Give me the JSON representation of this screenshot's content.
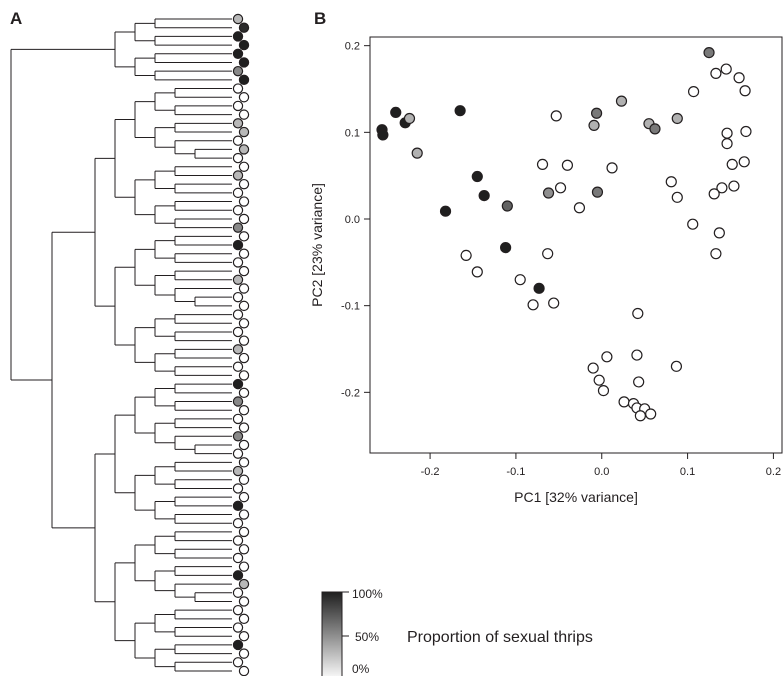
{
  "panel_a": {
    "label": "A",
    "leaf_colors": [
      "#b8b8b8",
      "#2b2b2b",
      "#1f1f1f",
      "#1f1f1f",
      "#1f1f1f",
      "#1f1f1f",
      "#888888",
      "#1f1f1f",
      "#ffffff",
      "#ffffff",
      "#ffffff",
      "#ffffff",
      "#b8b8b8",
      "#b8b8b8",
      "#ffffff",
      "#b8b8b8",
      "#ffffff",
      "#ffffff",
      "#b8b8b8",
      "#ffffff",
      "#ffffff",
      "#ffffff",
      "#ffffff",
      "#ffffff",
      "#888888",
      "#ffffff",
      "#1f1f1f",
      "#ffffff",
      "#ffffff",
      "#ffffff",
      "#b8b8b8",
      "#ffffff",
      "#ffffff",
      "#ffffff",
      "#ffffff",
      "#ffffff",
      "#ffffff",
      "#ffffff",
      "#b8b8b8",
      "#ffffff",
      "#ffffff",
      "#ffffff",
      "#1f1f1f",
      "#ffffff",
      "#888888",
      "#ffffff",
      "#ffffff",
      "#ffffff",
      "#888888",
      "#ffffff",
      "#ffffff",
      "#ffffff",
      "#b8b8b8",
      "#ffffff",
      "#ffffff",
      "#ffffff",
      "#1f1f1f",
      "#ffffff",
      "#ffffff",
      "#ffffff",
      "#ffffff",
      "#ffffff",
      "#ffffff",
      "#ffffff",
      "#1f1f1f",
      "#b8b8b8",
      "#ffffff",
      "#ffffff",
      "#ffffff",
      "#ffffff",
      "#ffffff",
      "#ffffff",
      "#1f1f1f",
      "#ffffff",
      "#ffffff",
      "#ffffff"
    ]
  },
  "panel_b": {
    "label": "B",
    "legend": {
      "top_label": "100%",
      "mid_label": "50%",
      "bottom_label": "0%",
      "caption": "Proportion of sexual thrips"
    }
  },
  "chart_data": {
    "type": "scatter",
    "title": "",
    "xlabel": "PC1 [32% variance]",
    "ylabel": "PC2 [23% variance]",
    "xlim": [
      -0.27,
      0.21
    ],
    "ylim": [
      -0.27,
      0.21
    ],
    "x_ticks": [
      -0.2,
      -0.1,
      0.0,
      0.1,
      0.2
    ],
    "x_tick_labels": [
      "-0.2",
      "-0.1",
      "0.0",
      "0.1",
      "0.2"
    ],
    "y_ticks": [
      0.2,
      0.1,
      0.0,
      -0.1,
      -0.2
    ],
    "y_tick_labels": [
      "0.2",
      "0.1",
      "0.0",
      "-0.1",
      "-0.2"
    ],
    "grid": false,
    "color_encoding": "proportion of sexual thrips (0 = white, 1 = black)",
    "points": [
      {
        "x": -0.256,
        "y": 0.103,
        "p": 1.0
      },
      {
        "x": -0.255,
        "y": 0.097,
        "p": 1.0
      },
      {
        "x": -0.24,
        "y": 0.123,
        "p": 1.0
      },
      {
        "x": -0.229,
        "y": 0.111,
        "p": 1.0
      },
      {
        "x": -0.224,
        "y": 0.116,
        "p": 0.35
      },
      {
        "x": -0.215,
        "y": 0.076,
        "p": 0.35
      },
      {
        "x": -0.165,
        "y": 0.125,
        "p": 1.0
      },
      {
        "x": -0.145,
        "y": 0.049,
        "p": 1.0
      },
      {
        "x": -0.137,
        "y": 0.027,
        "p": 1.0
      },
      {
        "x": -0.182,
        "y": 0.009,
        "p": 1.0
      },
      {
        "x": -0.11,
        "y": 0.015,
        "p": 0.7
      },
      {
        "x": -0.112,
        "y": -0.033,
        "p": 1.0
      },
      {
        "x": -0.073,
        "y": -0.08,
        "p": 1.0
      },
      {
        "x": -0.158,
        "y": -0.042,
        "p": 0.0
      },
      {
        "x": -0.145,
        "y": -0.061,
        "p": 0.0
      },
      {
        "x": -0.095,
        "y": -0.07,
        "p": 0.0
      },
      {
        "x": -0.08,
        "y": -0.099,
        "p": 0.0
      },
      {
        "x": -0.063,
        "y": -0.04,
        "p": 0.0
      },
      {
        "x": -0.056,
        "y": -0.097,
        "p": 0.0
      },
      {
        "x": -0.069,
        "y": 0.063,
        "p": 0.0
      },
      {
        "x": -0.062,
        "y": 0.03,
        "p": 0.5
      },
      {
        "x": -0.053,
        "y": 0.119,
        "p": 0.0
      },
      {
        "x": -0.048,
        "y": 0.036,
        "p": 0.0
      },
      {
        "x": -0.04,
        "y": 0.062,
        "p": 0.0
      },
      {
        "x": -0.026,
        "y": 0.013,
        "p": 0.0
      },
      {
        "x": -0.009,
        "y": 0.108,
        "p": 0.35
      },
      {
        "x": -0.006,
        "y": 0.122,
        "p": 0.6
      },
      {
        "x": -0.005,
        "y": 0.031,
        "p": 0.6
      },
      {
        "x": 0.012,
        "y": 0.059,
        "p": 0.0
      },
      {
        "x": 0.023,
        "y": 0.136,
        "p": 0.35
      },
      {
        "x": 0.055,
        "y": 0.11,
        "p": 0.35
      },
      {
        "x": 0.062,
        "y": 0.104,
        "p": 0.6
      },
      {
        "x": 0.088,
        "y": 0.116,
        "p": 0.35
      },
      {
        "x": 0.125,
        "y": 0.192,
        "p": 0.6
      },
      {
        "x": 0.133,
        "y": 0.168,
        "p": 0.0
      },
      {
        "x": 0.145,
        "y": 0.173,
        "p": 0.0
      },
      {
        "x": 0.107,
        "y": 0.147,
        "p": 0.0
      },
      {
        "x": 0.16,
        "y": 0.163,
        "p": 0.0
      },
      {
        "x": 0.167,
        "y": 0.148,
        "p": 0.0
      },
      {
        "x": 0.146,
        "y": 0.099,
        "p": 0.0
      },
      {
        "x": 0.168,
        "y": 0.101,
        "p": 0.0
      },
      {
        "x": 0.146,
        "y": 0.087,
        "p": 0.0
      },
      {
        "x": 0.152,
        "y": 0.063,
        "p": 0.0
      },
      {
        "x": 0.166,
        "y": 0.066,
        "p": 0.0
      },
      {
        "x": 0.081,
        "y": 0.043,
        "p": 0.0
      },
      {
        "x": 0.088,
        "y": 0.025,
        "p": 0.0
      },
      {
        "x": 0.14,
        "y": 0.036,
        "p": 0.0
      },
      {
        "x": 0.131,
        "y": 0.029,
        "p": 0.0
      },
      {
        "x": 0.154,
        "y": 0.038,
        "p": 0.0
      },
      {
        "x": 0.106,
        "y": -0.006,
        "p": 0.0
      },
      {
        "x": 0.137,
        "y": -0.016,
        "p": 0.0
      },
      {
        "x": 0.133,
        "y": -0.04,
        "p": 0.0
      },
      {
        "x": 0.042,
        "y": -0.109,
        "p": 0.0
      },
      {
        "x": 0.041,
        "y": -0.157,
        "p": 0.0
      },
      {
        "x": 0.006,
        "y": -0.159,
        "p": 0.0
      },
      {
        "x": -0.01,
        "y": -0.172,
        "p": 0.0
      },
      {
        "x": 0.087,
        "y": -0.17,
        "p": 0.0
      },
      {
        "x": -0.003,
        "y": -0.186,
        "p": 0.0
      },
      {
        "x": 0.043,
        "y": -0.188,
        "p": 0.0
      },
      {
        "x": 0.002,
        "y": -0.198,
        "p": 0.0
      },
      {
        "x": 0.026,
        "y": -0.211,
        "p": 0.0
      },
      {
        "x": 0.037,
        "y": -0.213,
        "p": 0.0
      },
      {
        "x": 0.041,
        "y": -0.218,
        "p": 0.0
      },
      {
        "x": 0.05,
        "y": -0.219,
        "p": 0.0
      },
      {
        "x": 0.045,
        "y": -0.227,
        "p": 0.0
      },
      {
        "x": 0.057,
        "y": -0.225,
        "p": 0.0
      }
    ]
  }
}
